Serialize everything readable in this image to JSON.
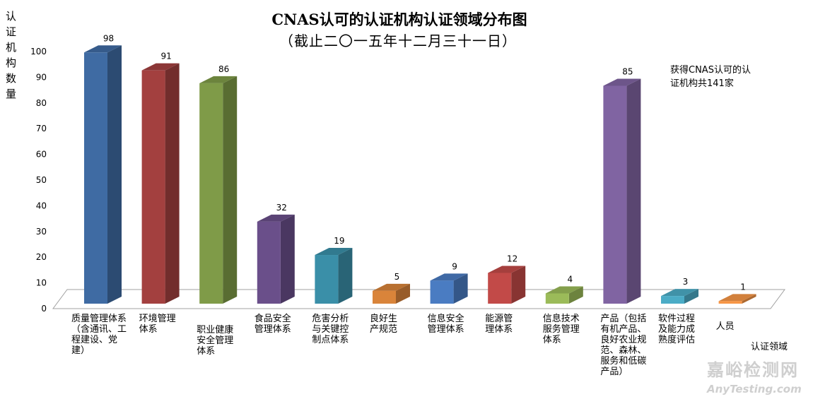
{
  "chart_data": {
    "type": "bar",
    "title": "CNAS认可的认证机构认证领域分布图",
    "subtitle": "（截止二〇一五年十二月三十一日）",
    "ylabel": "认证机构数量",
    "xlabel": "认证领域",
    "ylim": [
      0,
      100
    ],
    "yticks": [
      0,
      10,
      20,
      30,
      40,
      50,
      60,
      70,
      80,
      90,
      100
    ],
    "categories": [
      "质量管理体系（含通讯、工程建设、党建）",
      "环境管理体系",
      "职业健康安全管理体系",
      "食品安全管理体系",
      "危害分析与关键控制点体系",
      "良好生产规范",
      "信息安全管理体系",
      "能源管理体系",
      "信息技术服务管理体系",
      "产品（包括有机产品、良好农业规范、森林、服务和低碳产品）",
      "软件过程及能力成熟度评估",
      "人员"
    ],
    "values": [
      98,
      91,
      86,
      32,
      19,
      5,
      9,
      12,
      4,
      85,
      3,
      1
    ],
    "colors": [
      "#3f6ba3",
      "#a3403f",
      "#7f9b48",
      "#6a4f8a",
      "#3a8fa8",
      "#d9843a",
      "#4a7cc2",
      "#c24a48",
      "#9bbb59",
      "#8064a2",
      "#4bacc6",
      "#f79646"
    ],
    "annotation": "获得CNAS认可的认证机构共141家"
  },
  "watermark": {
    "cn": "嘉峪检测网",
    "en": "AnyTesting.com"
  }
}
